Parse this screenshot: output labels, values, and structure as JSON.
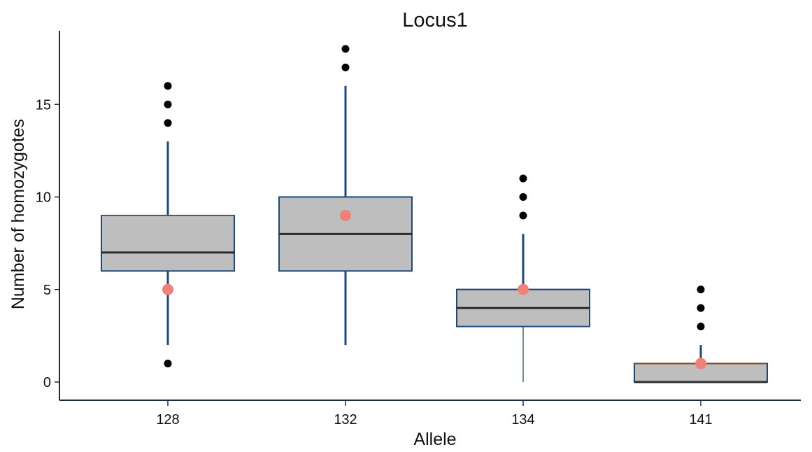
{
  "chart_data": {
    "type": "boxplot",
    "title": "Locus1",
    "xlabel": "Allele",
    "ylabel": "Number of homozygotes",
    "ylim": [
      -1,
      18.3
    ],
    "yticks": [
      0,
      5,
      10,
      15
    ],
    "grid": false,
    "categories": [
      "128",
      "132",
      "134",
      "141"
    ],
    "boxes": [
      {
        "category": "128",
        "whisker_low": 2,
        "q1": 6,
        "median": 7,
        "q3": 9,
        "whisker_high": 13,
        "outliers": [
          1,
          14,
          15,
          16
        ],
        "marker": 5
      },
      {
        "category": "132",
        "whisker_low": 2,
        "q1": 6,
        "median": 8,
        "q3": 10,
        "whisker_high": 16,
        "outliers": [
          17,
          18
        ],
        "marker": 9
      },
      {
        "category": "134",
        "whisker_low": 0,
        "q1": 3,
        "median": 4,
        "q3": 5,
        "whisker_high": 8,
        "outliers": [
          9,
          10,
          11
        ],
        "marker": 5
      },
      {
        "category": "141",
        "whisker_low": 0,
        "q1": 0,
        "median": 0,
        "q3": 1,
        "whisker_high": 2,
        "outliers": [
          3,
          4,
          5
        ],
        "marker": 1
      }
    ],
    "colors": {
      "box_fill": "#bebebe",
      "box_border": "#1c4a7a",
      "box_border_alt": "#8a4a1e",
      "median": "#2b2b2b",
      "whisker": "#1c4a7a",
      "outlier": "#000000",
      "marker": "#f08078",
      "axis": "#1c2a44"
    }
  }
}
